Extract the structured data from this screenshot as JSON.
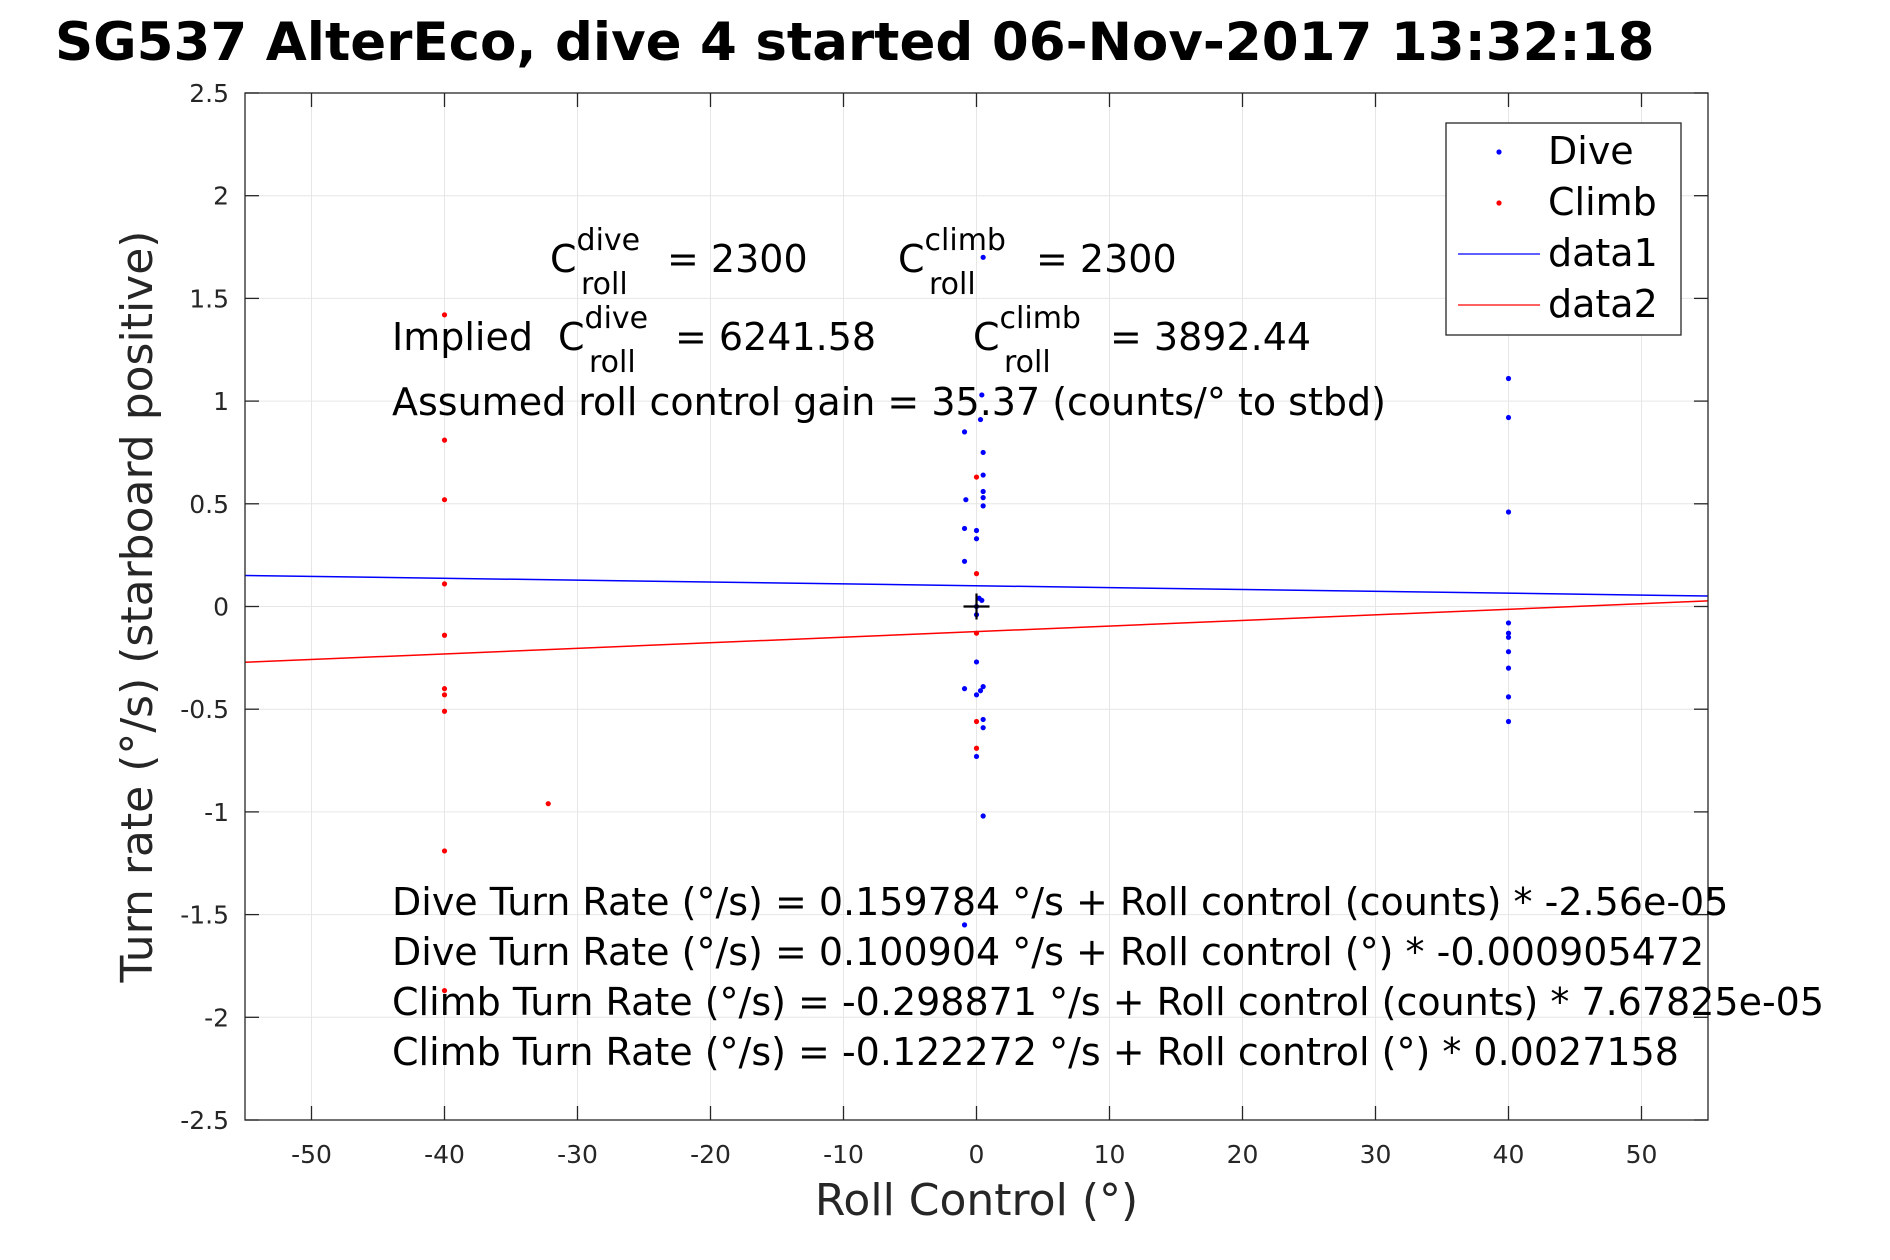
{
  "chart_data": {
    "type": "scatter",
    "title": "SG537 AlterEco, dive 4 started 06-Nov-2017 13:32:18",
    "xlabel": "Roll Control (°)",
    "ylabel": "Turn rate (°/s) (starboard positive)",
    "xlim": [
      -55,
      55
    ],
    "ylim": [
      -2.5,
      2.5
    ],
    "xticks": [
      -50,
      -40,
      -30,
      -20,
      -10,
      0,
      10,
      20,
      30,
      40,
      50
    ],
    "xtick_labels": [
      "-50",
      "-40",
      "-30",
      "-20",
      "-10",
      "0",
      "10",
      "20",
      "30",
      "40",
      "50"
    ],
    "yticks": [
      2.5,
      2,
      1.5,
      1,
      0.5,
      0,
      -0.5,
      -1,
      -1.5,
      -2,
      -2.5
    ],
    "ytick_labels": [
      "2.5",
      "2",
      "1.5",
      "1",
      "0.5",
      "0",
      "-0.5",
      "-1",
      "-1.5",
      "-2",
      "-2.5"
    ],
    "grid": true,
    "legend_position": "top-right",
    "legend": [
      "Dive",
      "Climb",
      "data1",
      "data2"
    ],
    "colors": {
      "dive": "#0000ff",
      "climb": "#ff0000",
      "axis": "#262626",
      "grid": "#e6e6e6",
      "center_marker": "#000000"
    },
    "series": [
      {
        "name": "Dive",
        "kind": "points",
        "color": "#0000ff",
        "points": [
          [
            0.5,
            1.7
          ],
          [
            0.4,
            1.03
          ],
          [
            -0.9,
            0.85
          ],
          [
            0.3,
            0.91
          ],
          [
            0.5,
            0.75
          ],
          [
            0.5,
            0.64
          ],
          [
            0.5,
            0.56
          ],
          [
            0.5,
            0.53
          ],
          [
            -0.8,
            0.52
          ],
          [
            0.5,
            0.49
          ],
          [
            -0.9,
            0.38
          ],
          [
            0.0,
            0.37
          ],
          [
            0.0,
            0.33
          ],
          [
            -0.9,
            0.22
          ],
          [
            0.2,
            0.04
          ],
          [
            0.4,
            0.03
          ],
          [
            0.0,
            0.0
          ],
          [
            0.0,
            -0.04
          ],
          [
            0.0,
            -0.27
          ],
          [
            -0.9,
            -0.4
          ],
          [
            0.5,
            -0.39
          ],
          [
            0.3,
            -0.41
          ],
          [
            0.0,
            -0.43
          ],
          [
            0.5,
            -0.55
          ],
          [
            0.5,
            -0.59
          ],
          [
            0.0,
            -0.73
          ],
          [
            0.5,
            -1.02
          ],
          [
            -0.9,
            -1.55
          ],
          [
            40,
            1.11
          ],
          [
            40,
            0.92
          ],
          [
            40,
            0.46
          ],
          [
            40,
            -0.08
          ],
          [
            40,
            -0.13
          ],
          [
            40,
            -0.15
          ],
          [
            40,
            -0.22
          ],
          [
            40,
            -0.3
          ],
          [
            40,
            -0.44
          ],
          [
            40,
            -0.56
          ]
        ]
      },
      {
        "name": "Climb",
        "kind": "points",
        "color": "#ff0000",
        "points": [
          [
            -40,
            1.42
          ],
          [
            -40,
            0.81
          ],
          [
            -40,
            0.52
          ],
          [
            -40,
            0.11
          ],
          [
            -40,
            -0.14
          ],
          [
            -40,
            -0.4
          ],
          [
            -40,
            -0.43
          ],
          [
            -40,
            -0.51
          ],
          [
            -40,
            -1.19
          ],
          [
            -40,
            -1.87
          ],
          [
            -32.2,
            -0.96
          ],
          [
            0.0,
            0.63
          ],
          [
            0.0,
            0.16
          ],
          [
            0.0,
            -0.13
          ],
          [
            0.0,
            -0.56
          ],
          [
            0.0,
            -0.69
          ]
        ]
      },
      {
        "name": "data1",
        "kind": "line",
        "color": "#0000ff",
        "points": [
          [
            -55,
            0.1507
          ],
          [
            55,
            0.0511
          ]
        ]
      },
      {
        "name": "data2",
        "kind": "line",
        "color": "#ff0000",
        "points": [
          [
            -55,
            -0.2716
          ],
          [
            55,
            0.0271
          ]
        ]
      }
    ],
    "center_marker": [
      0,
      0
    ],
    "annotations": {
      "c_roll_dive": {
        "base": "C",
        "sup": "dive",
        "sub": "roll",
        "rest": "= 2300"
      },
      "c_roll_climb": {
        "base": "C",
        "sup": "climb",
        "sub": "roll",
        "rest": "= 2300"
      },
      "implied_prefix": "Implied",
      "implied_dive": {
        "base": "C",
        "sup": "dive",
        "sub": "roll",
        "rest": "= 6241.58"
      },
      "implied_climb": {
        "base": "C",
        "sup": "climb",
        "sub": "roll",
        "rest": "= 3892.44"
      },
      "gain": "Assumed roll control gain = 35.37 (counts/° to stbd)",
      "fits": [
        "Dive Turn Rate (°/s) = 0.159784 °/s + Roll control (counts) * -2.56e-05",
        "Dive Turn Rate (°/s) = 0.100904 °/s + Roll control (°) * -0.000905472",
        "Climb Turn Rate (°/s) = -0.298871 °/s + Roll control (counts) * 7.67825e-05",
        "Climb Turn Rate (°/s) = -0.122272 °/s + Roll control (°) * 0.0027158"
      ]
    }
  }
}
